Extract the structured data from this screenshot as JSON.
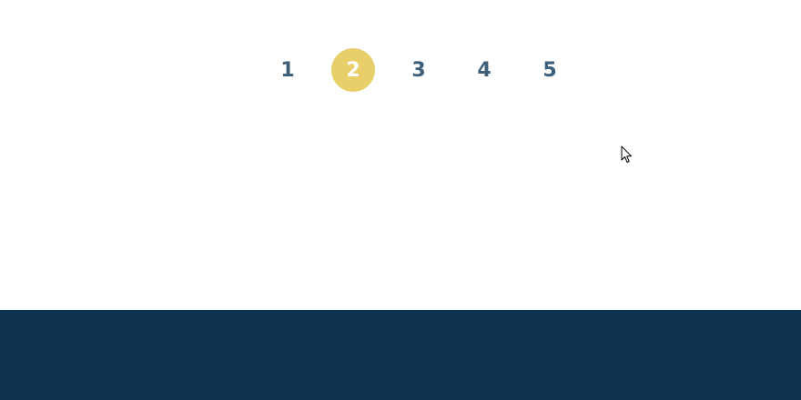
{
  "pagination": {
    "pages": [
      "1",
      "2",
      "3",
      "4",
      "5"
    ],
    "current_page": "2"
  },
  "colors": {
    "active_bg": "#e8cf6a",
    "page_text": "#3d5f7a",
    "active_text": "#ffffff",
    "footer_bg": "#0d3350",
    "page_bg": "#ffffff"
  },
  "icons": {
    "cursor": "mouse-pointer-icon"
  }
}
